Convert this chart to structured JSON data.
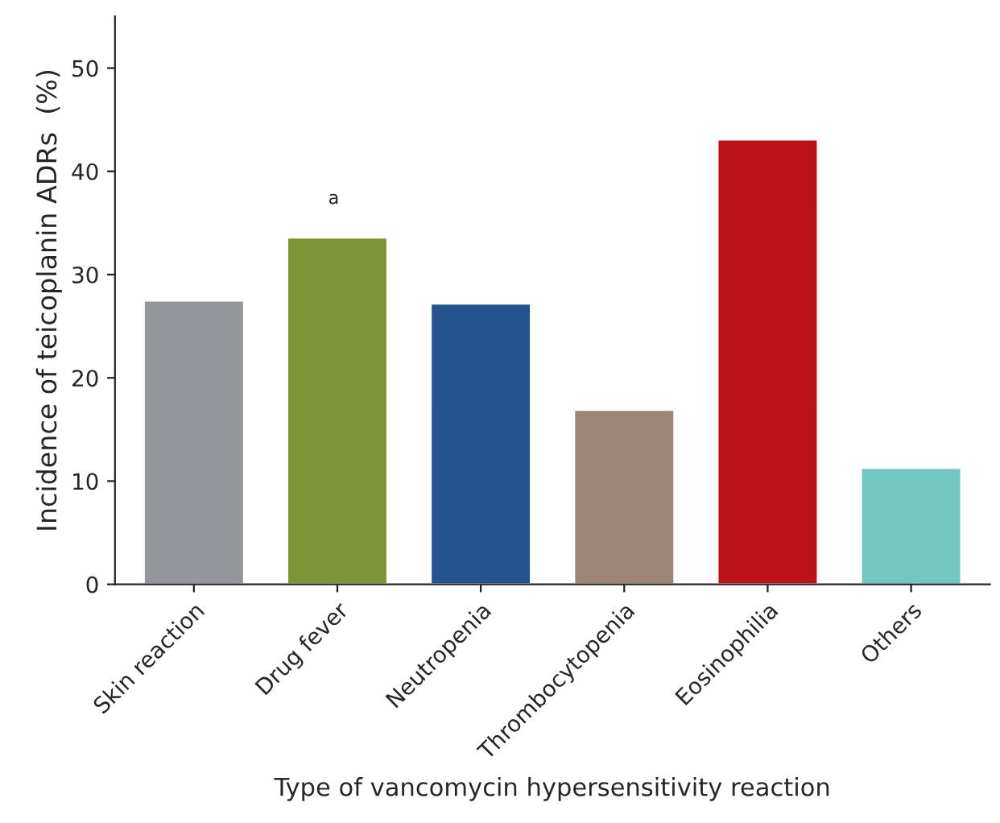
{
  "chart_data": {
    "type": "bar",
    "xlabel": "Type of vancomycin hypersensitivity reaction",
    "ylabel": "Incidence of teicoplanin ADRs  (%)",
    "categories": [
      "Skin reaction",
      "Drug fever",
      "Neutropenia",
      "Thrombocytopenia",
      "Eosinophilia",
      "Others"
    ],
    "values": [
      27.5,
      33.6,
      27.2,
      16.9,
      43.1,
      11.3
    ],
    "colors": [
      "#939598",
      "#7d9534",
      "#24548f",
      "#9c8678",
      "#bd1118",
      "#72c8c0"
    ],
    "ylim": [
      0,
      55
    ],
    "yticks": [
      0,
      10,
      20,
      30,
      40,
      50
    ],
    "annotations": [
      "a"
    ],
    "grid": false,
    "legend": false
  }
}
